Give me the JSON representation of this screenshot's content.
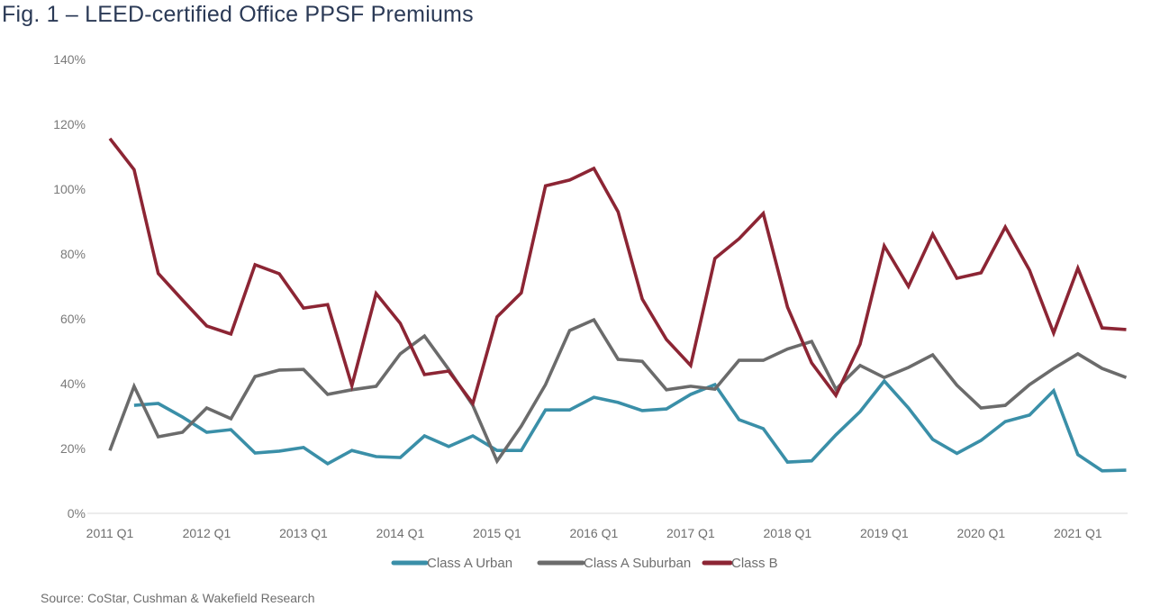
{
  "title": "Fig. 1 – LEED-certified Office PPSF Premiums",
  "source": "Source: CoStar, Cushman & Wakefield Research",
  "chart_data": {
    "type": "line",
    "title": "Fig. 1 – LEED-certified Office PPSF Premiums",
    "xlabel": "",
    "ylabel": "",
    "ylim": [
      0,
      140
    ],
    "grid": false,
    "legend_position": "bottom",
    "y_ticks": [
      "0%",
      "20%",
      "40%",
      "60%",
      "80%",
      "100%",
      "120%",
      "140%"
    ],
    "y_tick_values": [
      0,
      20,
      40,
      60,
      80,
      100,
      120,
      140
    ],
    "x_tick_labels": [
      "2011 Q1",
      "2012 Q1",
      "2013 Q1",
      "2014 Q1",
      "2015 Q1",
      "2016 Q1",
      "2017 Q1",
      "2018 Q1",
      "2019 Q1",
      "2020 Q1",
      "2021 Q1"
    ],
    "x_tick_indices": [
      0,
      4,
      8,
      12,
      16,
      20,
      24,
      28,
      32,
      36,
      40
    ],
    "x": [
      "2011 Q1",
      "2011 Q2",
      "2011 Q3",
      "2011 Q4",
      "2012 Q1",
      "2012 Q2",
      "2012 Q3",
      "2012 Q4",
      "2013 Q1",
      "2013 Q2",
      "2013 Q3",
      "2013 Q4",
      "2014 Q1",
      "2014 Q2",
      "2014 Q3",
      "2014 Q4",
      "2015 Q1",
      "2015 Q2",
      "2015 Q3",
      "2015 Q4",
      "2016 Q1",
      "2016 Q2",
      "2016 Q3",
      "2016 Q4",
      "2017 Q1",
      "2017 Q2",
      "2017 Q3",
      "2017 Q4",
      "2018 Q1",
      "2018 Q2",
      "2018 Q3",
      "2018 Q4",
      "2019 Q1",
      "2019 Q2",
      "2019 Q3",
      "2019 Q4",
      "2020 Q1",
      "2020 Q2",
      "2020 Q3",
      "2020 Q4",
      "2021 Q1",
      "2021 Q2",
      "2021 Q3"
    ],
    "series": [
      {
        "name": "Class A Urban",
        "color": "#3a8fa8",
        "values": [
          null,
          33.3,
          33.9,
          29.7,
          25,
          25.8,
          18.6,
          19.2,
          20.3,
          15.3,
          19.4,
          17.5,
          17.2,
          23.9,
          20.6,
          23.9,
          19.4,
          19.4,
          31.9,
          31.9,
          35.8,
          34.2,
          31.7,
          32.2,
          36.7,
          39.7,
          28.9,
          26.1,
          15.8,
          16.2,
          24.2,
          31.4,
          40.8,
          32.5,
          22.8,
          18.5,
          22.5,
          28.3,
          30.3,
          37.8,
          18.1,
          13.1,
          13.3
        ]
      },
      {
        "name": "Class A Suburban",
        "color": "#6b6b6b",
        "values": [
          19.4,
          39.2,
          23.6,
          25,
          32.5,
          29.2,
          42.2,
          44.2,
          44.4,
          36.7,
          38.1,
          39.2,
          49.2,
          54.7,
          44.4,
          33.3,
          16.1,
          26.9,
          39.7,
          56.4,
          59.7,
          47.5,
          46.9,
          38.1,
          39.2,
          38.3,
          47.2,
          47.2,
          50.7,
          53,
          38.3,
          45.6,
          41.9,
          45,
          48.9,
          39.5,
          32.5,
          33.3,
          39.7,
          44.7,
          49.2,
          44.7,
          41.9
        ]
      },
      {
        "name": "Class B",
        "color": "#8c2534",
        "values": [
          115.6,
          106,
          74,
          65.8,
          57.8,
          55.3,
          76.7,
          73.9,
          63.3,
          64.4,
          39.4,
          67.8,
          58.6,
          42.8,
          43.9,
          33.9,
          60.6,
          68,
          101,
          102.8,
          106.4,
          93,
          66.1,
          53.6,
          45.6,
          78.6,
          84.7,
          92.5,
          63.6,
          46.4,
          36.4,
          52.2,
          82.5,
          70,
          86.1,
          72.5,
          74.2,
          88.3,
          75,
          55.6,
          75.6,
          57.2,
          56.7
        ]
      }
    ]
  }
}
